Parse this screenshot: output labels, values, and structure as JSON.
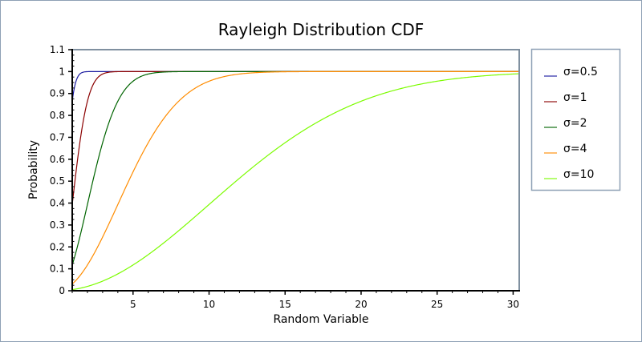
{
  "chart_data": {
    "type": "line",
    "title": "Rayleigh Distribution CDF",
    "xlabel": "Random Variable",
    "ylabel": "Probability",
    "xlim": [
      1,
      30.4
    ],
    "ylim": [
      0,
      1.1
    ],
    "xticks": [
      5,
      10,
      15,
      20,
      25,
      30
    ],
    "yticks": [
      0,
      0.1,
      0.2,
      0.3,
      0.4,
      0.5,
      0.6,
      0.7,
      0.8,
      0.9,
      1,
      1.1
    ],
    "ytick_labels": [
      "0",
      "0.1",
      "0.2",
      "0.3",
      "0.4",
      "0.5",
      "0.6",
      "0.7",
      "0.8",
      "0.9",
      "1",
      "1.1"
    ],
    "grid": false,
    "legend_position": "right",
    "function": "1 - exp(-x^2 / (2 sigma^2))",
    "series": [
      {
        "name": "σ=0.5",
        "sigma": 0.5,
        "color": "#1a1aa0"
      },
      {
        "name": "σ=1",
        "sigma": 1,
        "color": "#8b0000"
      },
      {
        "name": "σ=2",
        "sigma": 2,
        "color": "#006400"
      },
      {
        "name": "σ=4",
        "sigma": 4,
        "color": "#ff8c00"
      },
      {
        "name": "σ=10",
        "sigma": 10,
        "color": "#7cfc00"
      }
    ]
  },
  "colors": {
    "frame": "#8090a0",
    "outer_border": "#8ea0b5"
  }
}
